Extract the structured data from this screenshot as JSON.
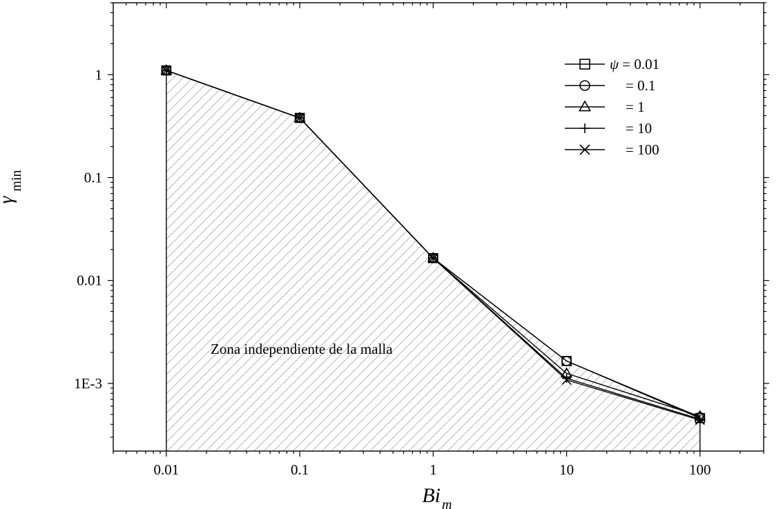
{
  "chart_data": {
    "type": "line",
    "xscale": "log",
    "yscale": "log",
    "xlim": [
      0.004,
      300
    ],
    "ylim": [
      0.00022,
      5
    ],
    "grid": false,
    "legend_position": "top-right",
    "xlabel": {
      "main": "Bi",
      "sub": "m"
    },
    "ylabel": {
      "main": "γ",
      "sub": "min"
    },
    "x_ticks": [
      {
        "value": 0.01,
        "label": "0.01"
      },
      {
        "value": 0.1,
        "label": "0.1"
      },
      {
        "value": 1,
        "label": "1"
      },
      {
        "value": 10,
        "label": "10"
      },
      {
        "value": 100,
        "label": "100"
      }
    ],
    "y_ticks": [
      {
        "value": 0.001,
        "label": "1E-3"
      },
      {
        "value": 0.01,
        "label": "0.01"
      },
      {
        "value": 0.1,
        "label": "0.1"
      },
      {
        "value": 1,
        "label": "1"
      }
    ],
    "x": [
      0.01,
      0.1,
      1,
      10,
      100
    ],
    "series": [
      {
        "name": "0.01",
        "marker": "square",
        "values": [
          1.1,
          0.38,
          0.0165,
          0.00165,
          0.00046
        ]
      },
      {
        "name": "0.1",
        "marker": "circle",
        "values": [
          1.1,
          0.38,
          0.0165,
          0.00165,
          0.00047
        ]
      },
      {
        "name": "1",
        "marker": "triangle",
        "values": [
          1.1,
          0.38,
          0.0165,
          0.00125,
          0.00048
        ]
      },
      {
        "name": "10",
        "marker": "plus",
        "values": [
          1.1,
          0.38,
          0.0165,
          0.00112,
          0.00045
        ]
      },
      {
        "name": "100",
        "marker": "cross",
        "values": [
          1.1,
          0.38,
          0.0165,
          0.00108,
          0.00044
        ]
      }
    ],
    "legend_title": "ψ",
    "legend_entries": [
      "ψ =    0.01",
      "=    0.1",
      "=    1",
      "=   10",
      "= 100"
    ],
    "annotation": "Zona independiente de la malla",
    "hatched_region": "below curve from x=0.01 to x=100",
    "colors": {
      "line": "#000000",
      "hatch": "#b8b8b8",
      "background": "#ffffff"
    }
  }
}
